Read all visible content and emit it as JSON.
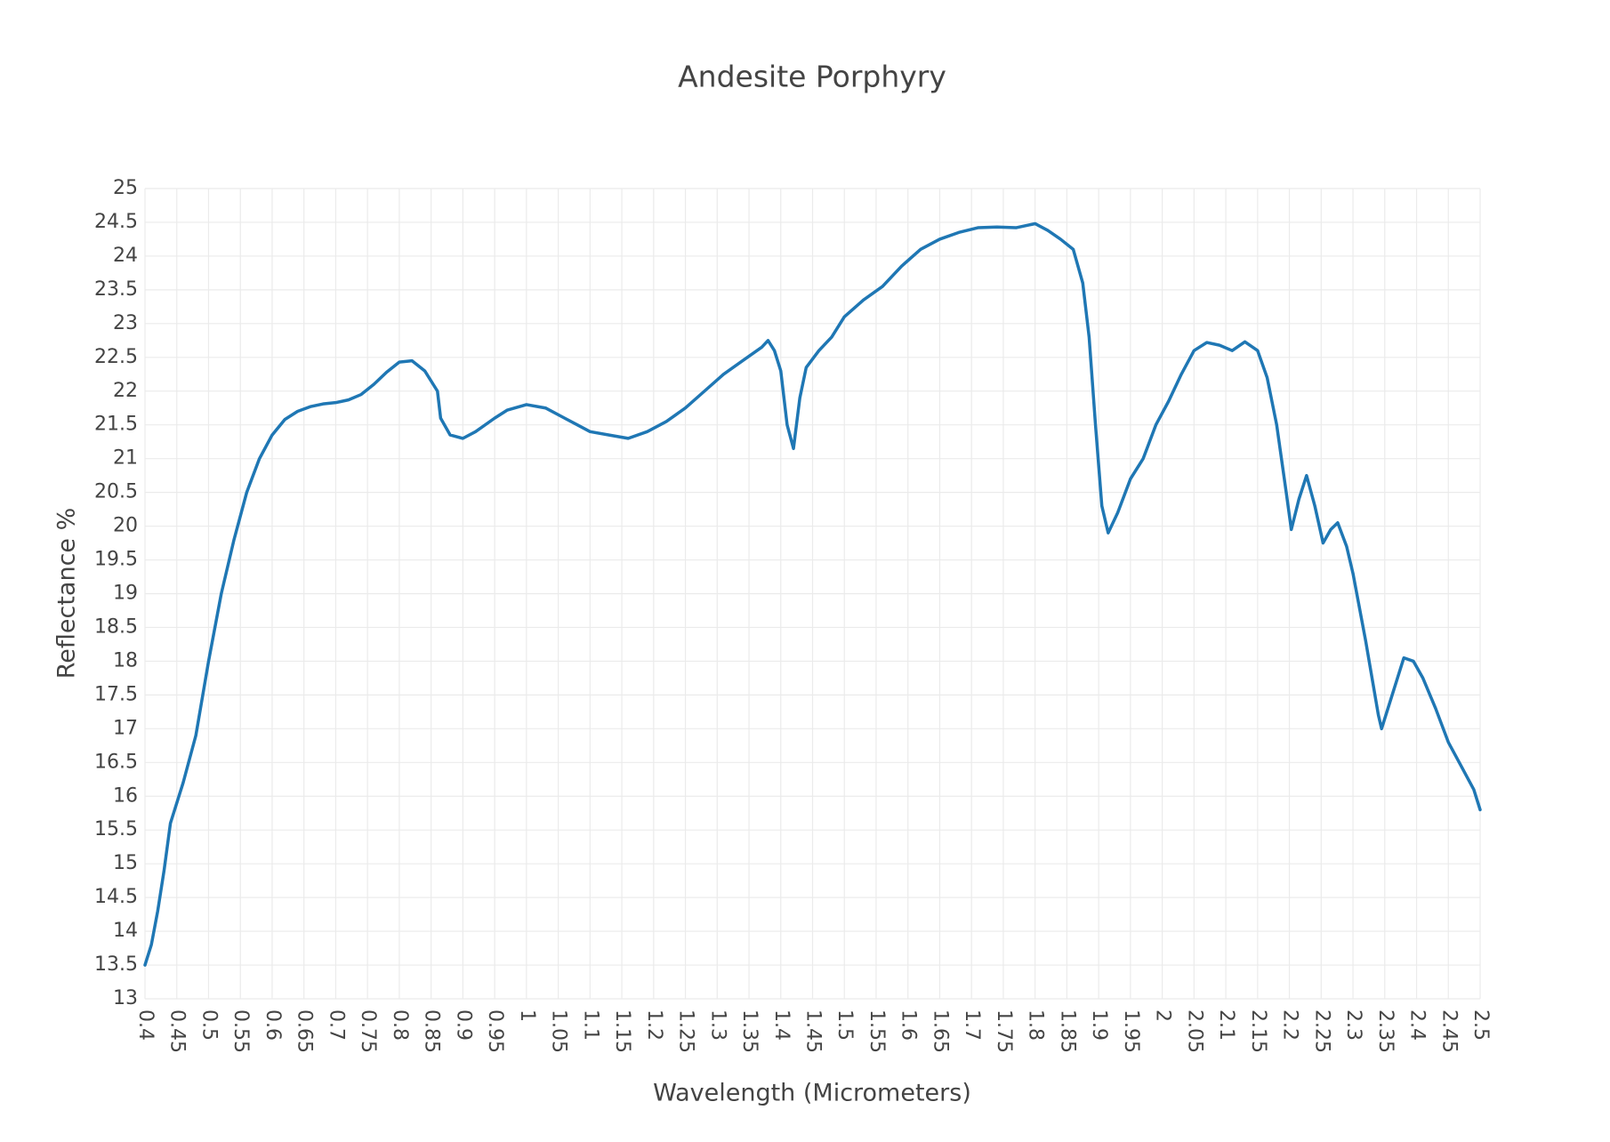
{
  "chart_data": {
    "type": "line",
    "title": "Andesite Porphyry",
    "x_label": "Wavelength (Micrometers)",
    "y_label": "Reflectance %",
    "color": "#1f77b4",
    "grid": true,
    "xlim": [
      0.4,
      2.5
    ],
    "ylim": [
      13,
      25
    ],
    "xticks": [
      0.4,
      0.45,
      0.5,
      0.55,
      0.6,
      0.65,
      0.7,
      0.75,
      0.8,
      0.85,
      0.9,
      0.95,
      1,
      1.05,
      1.1,
      1.15,
      1.2,
      1.25,
      1.3,
      1.35,
      1.4,
      1.45,
      1.5,
      1.55,
      1.6,
      1.65,
      1.7,
      1.75,
      1.8,
      1.85,
      1.9,
      1.95,
      2,
      2.05,
      2.1,
      2.15,
      2.2,
      2.25,
      2.3,
      2.35,
      2.4,
      2.45,
      2.5
    ],
    "yticks": [
      13,
      13.5,
      14,
      14.5,
      15,
      15.5,
      16,
      16.5,
      17,
      17.5,
      18,
      18.5,
      19,
      19.5,
      20,
      20.5,
      21,
      21.5,
      22,
      22.5,
      23,
      23.5,
      24,
      24.5,
      25
    ],
    "x": [
      0.4,
      0.41,
      0.42,
      0.43,
      0.44,
      0.46,
      0.48,
      0.5,
      0.52,
      0.54,
      0.56,
      0.58,
      0.6,
      0.62,
      0.64,
      0.66,
      0.68,
      0.7,
      0.72,
      0.74,
      0.76,
      0.78,
      0.8,
      0.82,
      0.84,
      0.86,
      0.865,
      0.88,
      0.9,
      0.92,
      0.95,
      0.97,
      1.0,
      1.03,
      1.06,
      1.08,
      1.1,
      1.13,
      1.16,
      1.19,
      1.22,
      1.25,
      1.28,
      1.31,
      1.34,
      1.37,
      1.38,
      1.39,
      1.4,
      1.41,
      1.42,
      1.43,
      1.44,
      1.46,
      1.48,
      1.5,
      1.53,
      1.56,
      1.59,
      1.62,
      1.65,
      1.68,
      1.71,
      1.74,
      1.77,
      1.8,
      1.82,
      1.84,
      1.86,
      1.875,
      1.885,
      1.895,
      1.905,
      1.915,
      1.93,
      1.95,
      1.97,
      1.99,
      2.01,
      2.03,
      2.05,
      2.07,
      2.09,
      2.11,
      2.13,
      2.15,
      2.165,
      2.18,
      2.195,
      2.203,
      2.215,
      2.227,
      2.24,
      2.253,
      2.265,
      2.276,
      2.29,
      2.3,
      2.32,
      2.34,
      2.345,
      2.36,
      2.38,
      2.395,
      2.41,
      2.43,
      2.45,
      2.47,
      2.49,
      2.5
    ],
    "values": [
      13.5,
      13.8,
      14.3,
      14.9,
      15.6,
      16.2,
      16.9,
      18.0,
      19.0,
      19.8,
      20.5,
      21.0,
      21.35,
      21.58,
      21.7,
      21.77,
      21.81,
      21.83,
      21.87,
      21.95,
      22.1,
      22.28,
      22.43,
      22.45,
      22.3,
      22.0,
      21.6,
      21.35,
      21.3,
      21.4,
      21.6,
      21.72,
      21.8,
      21.75,
      21.6,
      21.5,
      21.4,
      21.35,
      21.3,
      21.4,
      21.55,
      21.75,
      22.0,
      22.25,
      22.45,
      22.65,
      22.75,
      22.6,
      22.3,
      21.5,
      21.15,
      21.9,
      22.35,
      22.6,
      22.8,
      23.1,
      23.35,
      23.55,
      23.85,
      24.1,
      24.25,
      24.35,
      24.42,
      24.43,
      24.42,
      24.48,
      24.38,
      24.25,
      24.1,
      23.6,
      22.8,
      21.5,
      20.3,
      19.9,
      20.2,
      20.7,
      21.0,
      21.5,
      21.85,
      22.25,
      22.6,
      22.72,
      22.68,
      22.6,
      22.73,
      22.6,
      22.2,
      21.5,
      20.5,
      19.95,
      20.4,
      20.75,
      20.3,
      19.75,
      19.95,
      20.05,
      19.7,
      19.3,
      18.3,
      17.2,
      17.0,
      17.45,
      18.05,
      18.0,
      17.75,
      17.3,
      16.8,
      16.45,
      16.1,
      15.8
    ]
  }
}
